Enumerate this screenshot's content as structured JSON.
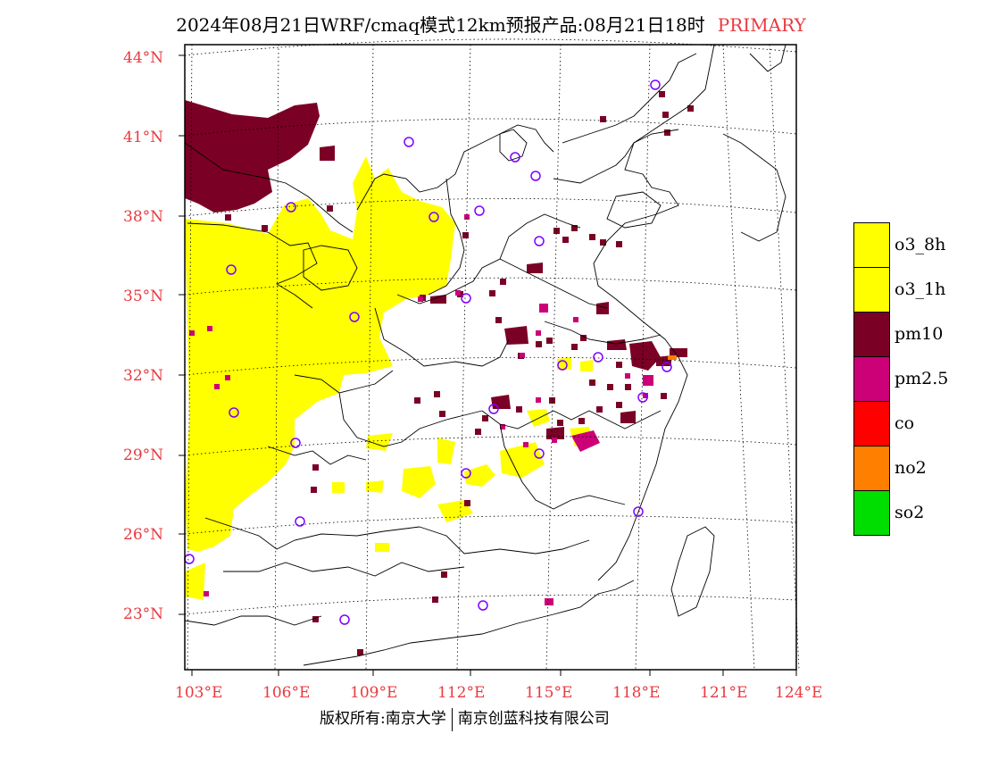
{
  "title": {
    "main": "2024年08月21日WRF/cmaq模式12km预报产品:08月21日18时",
    "tag": "PRIMARY"
  },
  "axes": {
    "lat_labels": [
      "44°N",
      "41°N",
      "38°N",
      "35°N",
      "32°N",
      "29°N",
      "26°N",
      "23°N"
    ],
    "lon_labels": [
      "103°E",
      "106°E",
      "109°E",
      "112°E",
      "115°E",
      "118°E",
      "121°E",
      "124°E"
    ]
  },
  "legend": [
    {
      "label": "o3_8h",
      "color": "#ffff00"
    },
    {
      "label": "o3_1h",
      "color": "#ffff00"
    },
    {
      "label": "pm10",
      "color": "#7b0026"
    },
    {
      "label": "pm2.5",
      "color": "#cc0077"
    },
    {
      "label": "co",
      "color": "#ff0000"
    },
    {
      "label": "no2",
      "color": "#ff8000"
    },
    {
      "label": "so2",
      "color": "#00dd00"
    }
  ],
  "footer": {
    "left": "版权所有:南京大学",
    "right": "南京创蓝科技有限公司"
  },
  "colors": {
    "axis_label": "#e8393f",
    "station_marker": "#7f00ff"
  }
}
